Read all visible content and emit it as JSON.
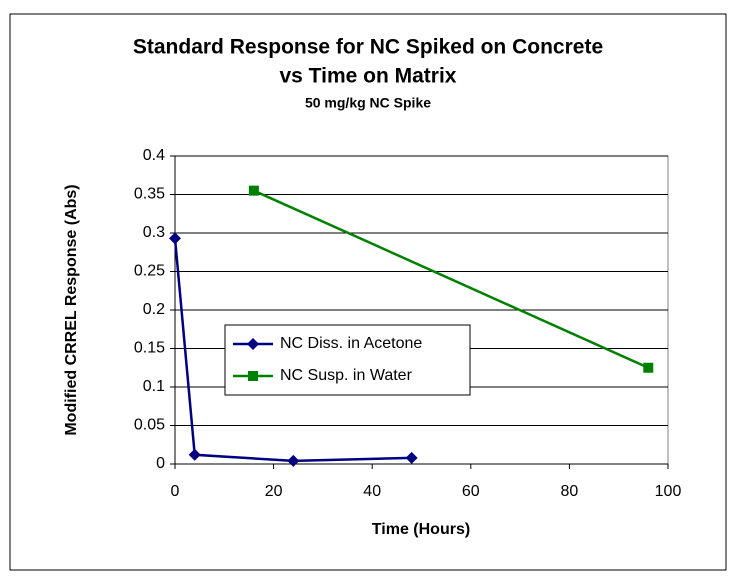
{
  "chart_data": {
    "type": "line",
    "title": [
      "Standard Response for NC Spiked on Concrete",
      "vs Time on Matrix"
    ],
    "subtitle": "50 mg/kg NC Spike",
    "x_label": "Time (Hours)",
    "y_label": "Modified CRREL Response (Abs)",
    "xlim": [
      0,
      100
    ],
    "xticks": [
      0,
      20,
      40,
      60,
      80,
      100
    ],
    "ylim": [
      0,
      0.4
    ],
    "yticks": [
      0,
      0.05,
      0.1,
      0.15,
      0.2,
      0.25,
      0.3,
      0.35,
      0.4
    ],
    "grid": true,
    "series": [
      {
        "name": "NC Diss. in Acetone",
        "color": "#000080",
        "marker": "diamond",
        "x": [
          0,
          4,
          24,
          48
        ],
        "values": [
          0.293,
          0.012,
          0.004,
          0.008
        ]
      },
      {
        "name": "NC Susp. in Water",
        "color": "#008000",
        "marker": "square",
        "x": [
          16,
          96
        ],
        "values": [
          0.355,
          0.125
        ]
      }
    ]
  }
}
